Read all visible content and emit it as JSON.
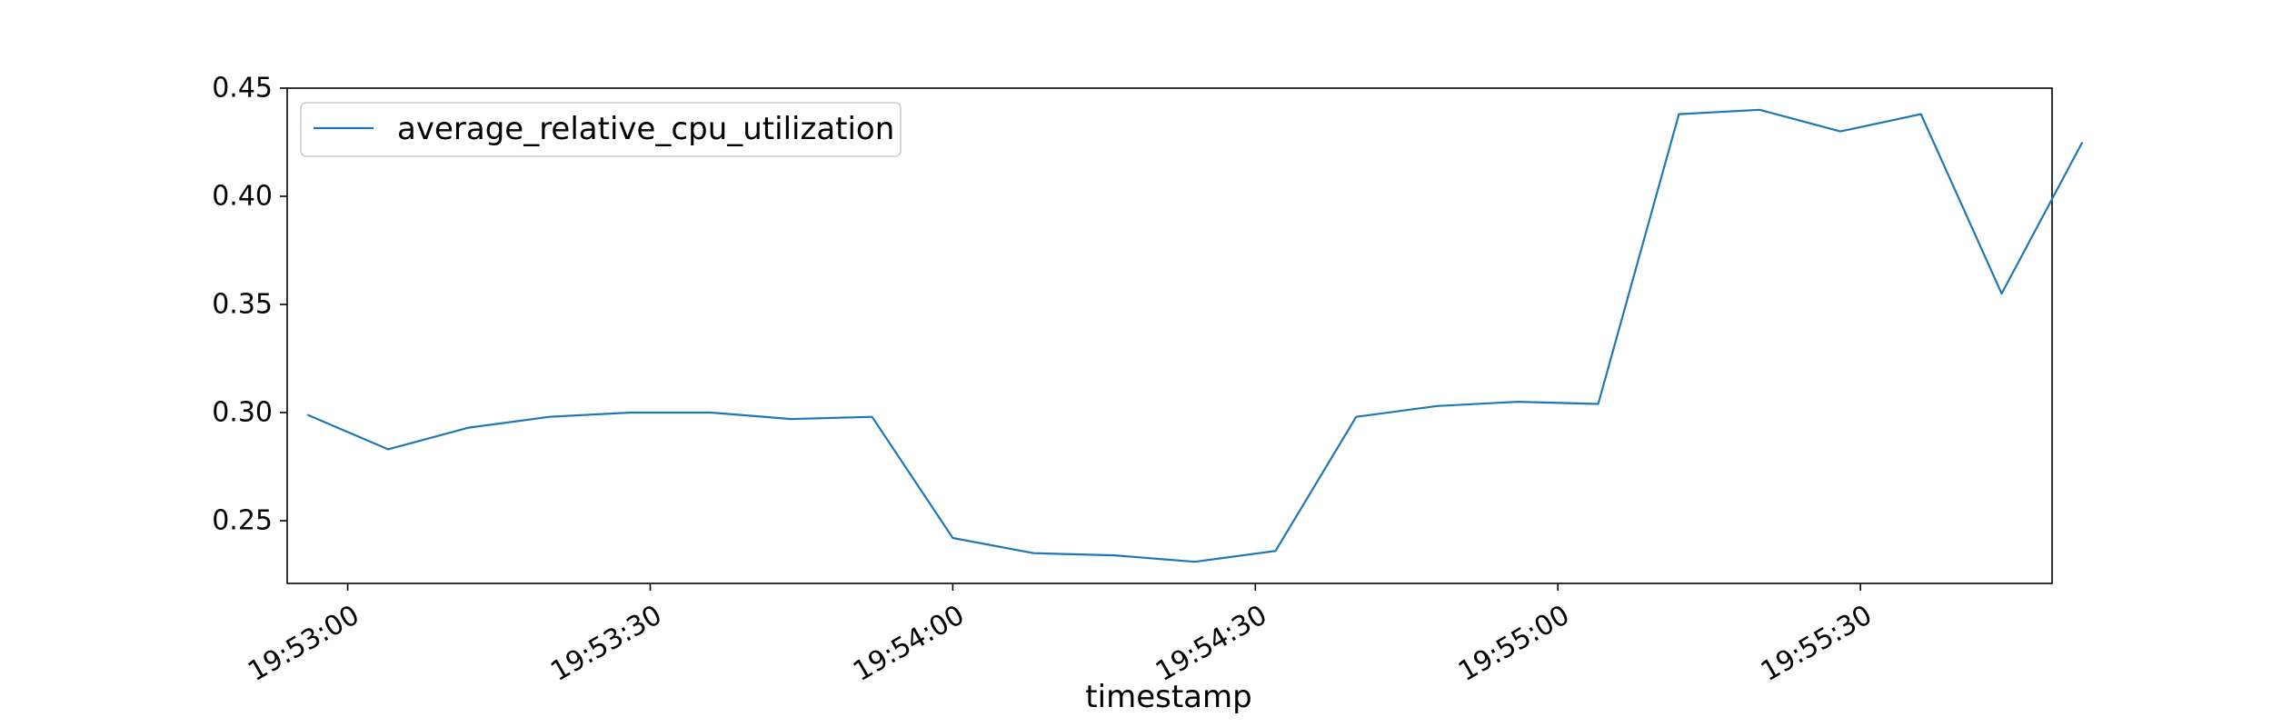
{
  "chart_data": {
    "type": "line",
    "title": "",
    "xlabel": "timestamp",
    "ylabel": "",
    "x": [
      "19:52:56",
      "19:53:04",
      "19:53:12",
      "19:53:20",
      "19:53:28",
      "19:53:36",
      "19:53:44",
      "19:53:52",
      "19:54:00",
      "19:54:08",
      "19:54:16",
      "19:54:24",
      "19:54:32",
      "19:54:40",
      "19:54:48",
      "19:54:56",
      "19:55:04",
      "19:55:12",
      "19:55:20",
      "19:55:28",
      "19:55:36",
      "19:55:44",
      "19:55:52"
    ],
    "series": [
      {
        "name": "average_relative_cpu_utilization",
        "color": "#1f77b4",
        "values": [
          0.299,
          0.283,
          0.293,
          0.298,
          0.3,
          0.3,
          0.297,
          0.298,
          0.242,
          0.235,
          0.234,
          0.231,
          0.236,
          0.298,
          0.303,
          0.305,
          0.304,
          0.438,
          0.44,
          0.43,
          0.438,
          0.355,
          0.425
        ]
      }
    ],
    "xlim": [
      "19:52:54",
      "19:55:49"
    ],
    "ylim": [
      0.221,
      0.45
    ],
    "xticks": [
      "19:53:00",
      "19:53:30",
      "19:54:00",
      "19:54:30",
      "19:55:00",
      "19:55:30"
    ],
    "yticks": [
      0.25,
      0.3,
      0.35,
      0.4,
      0.45
    ],
    "ytick_labels": [
      "0.25",
      "0.30",
      "0.35",
      "0.40",
      "0.45"
    ],
    "legend_position": "top-left",
    "grid": false
  }
}
